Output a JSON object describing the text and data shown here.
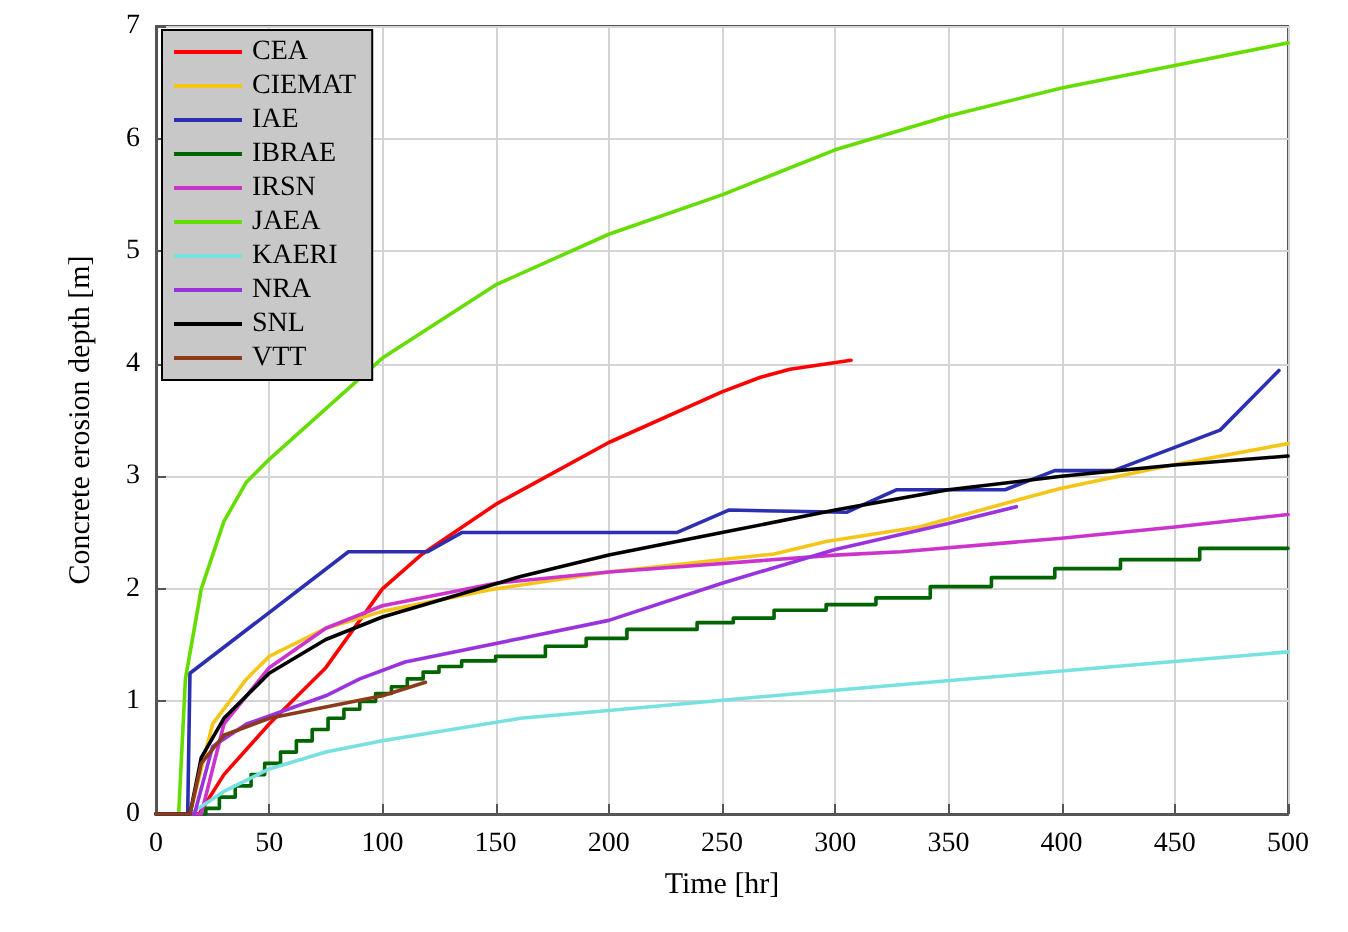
{
  "chart_data": {
    "type": "line",
    "xlabel": "Time [hr]",
    "ylabel": "Concrete erosion depth [m]",
    "xlim": [
      0,
      500
    ],
    "xticks": [
      0,
      50,
      100,
      150,
      200,
      250,
      300,
      350,
      400,
      450,
      500
    ],
    "ylim": [
      0,
      7
    ],
    "yticks": [
      0,
      1,
      2,
      3,
      4,
      5,
      6,
      7
    ],
    "grid": true,
    "legend": "top left",
    "marker": "none",
    "line_style": "solid",
    "series": [
      {
        "name": "CEA",
        "color": "#ff0000",
        "x": [
          0,
          19,
          30,
          50,
          75,
          100,
          117,
          150,
          200,
          250,
          267,
          280,
          307
        ],
        "values": [
          0,
          0,
          0.35,
          0.8,
          1.3,
          2.0,
          2.3,
          2.75,
          3.3,
          3.75,
          3.88,
          3.95,
          4.03
        ]
      },
      {
        "name": "CIEMAT",
        "color": "#f5c518",
        "x": [
          0,
          15,
          25,
          40,
          50,
          75,
          100,
          150,
          200,
          273,
          296,
          337,
          399,
          446,
          500
        ],
        "values": [
          0,
          0,
          0.8,
          1.2,
          1.4,
          1.65,
          1.8,
          2.0,
          2.15,
          2.31,
          2.42,
          2.55,
          2.89,
          3.09,
          3.29
        ]
      },
      {
        "name": "IAE",
        "color": "#2b2fb0",
        "x": [
          0,
          14,
          15,
          85,
          120,
          135,
          230,
          253,
          305,
          327,
          375,
          397,
          423,
          470,
          496
        ],
        "values": [
          0,
          0,
          1.25,
          2.33,
          2.33,
          2.5,
          2.5,
          2.7,
          2.68,
          2.88,
          2.88,
          3.05,
          3.05,
          3.41,
          3.94
        ]
      },
      {
        "name": "IBRAE",
        "type": "step",
        "color": "#006400",
        "x": [
          0,
          22,
          28,
          35,
          42,
          48,
          55,
          62,
          69,
          76,
          83,
          90,
          97,
          104,
          111,
          118,
          125,
          135,
          150,
          172,
          190,
          208,
          239,
          255,
          273,
          296,
          318,
          342,
          369,
          397,
          426,
          461,
          500
        ],
        "values": [
          0,
          0.05,
          0.15,
          0.25,
          0.35,
          0.45,
          0.55,
          0.65,
          0.75,
          0.85,
          0.93,
          1.0,
          1.07,
          1.13,
          1.2,
          1.26,
          1.31,
          1.36,
          1.4,
          1.49,
          1.56,
          1.64,
          1.7,
          1.74,
          1.81,
          1.86,
          1.92,
          2.02,
          2.1,
          2.18,
          2.26,
          2.36,
          2.36
        ]
      },
      {
        "name": "IRSN",
        "color": "#cc33cc",
        "x": [
          0,
          20,
          30,
          50,
          75,
          100,
          150,
          200,
          300,
          329,
          400,
          450,
          500
        ],
        "values": [
          0,
          0,
          0.8,
          1.3,
          1.65,
          1.85,
          2.05,
          2.15,
          2.3,
          2.33,
          2.45,
          2.55,
          2.66
        ]
      },
      {
        "name": "JAEA",
        "color": "#66dd00",
        "x": [
          0,
          10,
          13,
          20,
          30,
          40,
          50,
          100,
          150,
          200,
          250,
          300,
          350,
          400,
          450,
          500
        ],
        "values": [
          0,
          0,
          1.2,
          2.0,
          2.6,
          2.95,
          3.15,
          4.05,
          4.7,
          5.15,
          5.5,
          5.9,
          6.2,
          6.45,
          6.65,
          6.85
        ]
      },
      {
        "name": "KAERI",
        "color": "#77e0e0",
        "x": [
          0,
          15,
          30,
          50,
          75,
          100,
          161,
          200,
          300,
          400,
          500
        ],
        "values": [
          0,
          0,
          0.2,
          0.4,
          0.55,
          0.65,
          0.85,
          0.92,
          1.1,
          1.27,
          1.44
        ]
      },
      {
        "name": "NRA",
        "color": "#9933dd",
        "x": [
          0,
          17,
          25,
          40,
          75,
          90,
          110,
          161,
          200,
          250,
          300,
          350,
          380
        ],
        "values": [
          0,
          0,
          0.6,
          0.8,
          1.05,
          1.2,
          1.35,
          1.56,
          1.72,
          2.05,
          2.35,
          2.58,
          2.73
        ]
      },
      {
        "name": "SNL",
        "color": "#000000",
        "x": [
          0,
          15,
          20,
          30,
          50,
          75,
          100,
          161,
          200,
          250,
          300,
          350,
          400,
          450,
          500
        ],
        "values": [
          0,
          0,
          0.5,
          0.85,
          1.25,
          1.55,
          1.75,
          2.11,
          2.3,
          2.5,
          2.7,
          2.88,
          3.0,
          3.1,
          3.18
        ]
      },
      {
        "name": "VTT",
        "color": "#8b3a1a",
        "x": [
          0,
          15,
          20,
          30,
          50,
          75,
          100,
          119
        ],
        "values": [
          0,
          0,
          0.45,
          0.7,
          0.85,
          0.95,
          1.05,
          1.17
        ]
      }
    ]
  }
}
